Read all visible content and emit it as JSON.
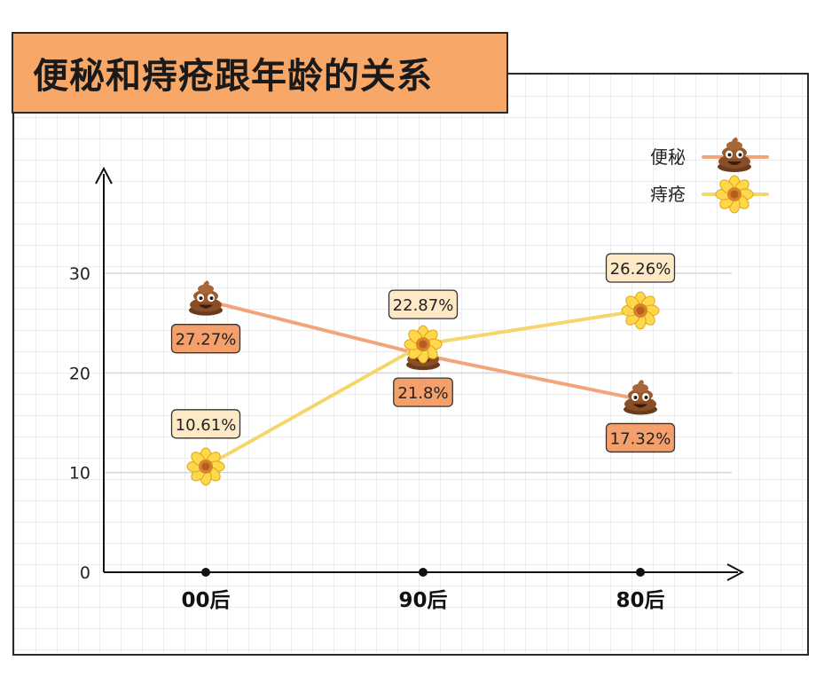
{
  "chart_data": {
    "type": "line",
    "title": "便秘和痔疮跟年龄的关系",
    "categories": [
      "00后",
      "90后",
      "80后"
    ],
    "yticks": [
      "0",
      "10",
      "20",
      "30"
    ],
    "ylim": [
      0,
      35
    ],
    "grid": true,
    "legend_position": "top-right",
    "series": [
      {
        "name": "便秘",
        "icon": "poop-icon",
        "color": "#f2a57a",
        "label_bg": "#f5a06a",
        "values": [
          27.27,
          21.8,
          17.32
        ],
        "labels": [
          "27.27%",
          "21.8%",
          "17.32%"
        ]
      },
      {
        "name": "痔疮",
        "icon": "flower-icon",
        "color": "#f6d66b",
        "label_bg": "#fde9c6",
        "values": [
          10.61,
          22.87,
          26.26
        ],
        "labels": [
          "10.61%",
          "22.87%",
          "26.26%"
        ]
      }
    ]
  }
}
